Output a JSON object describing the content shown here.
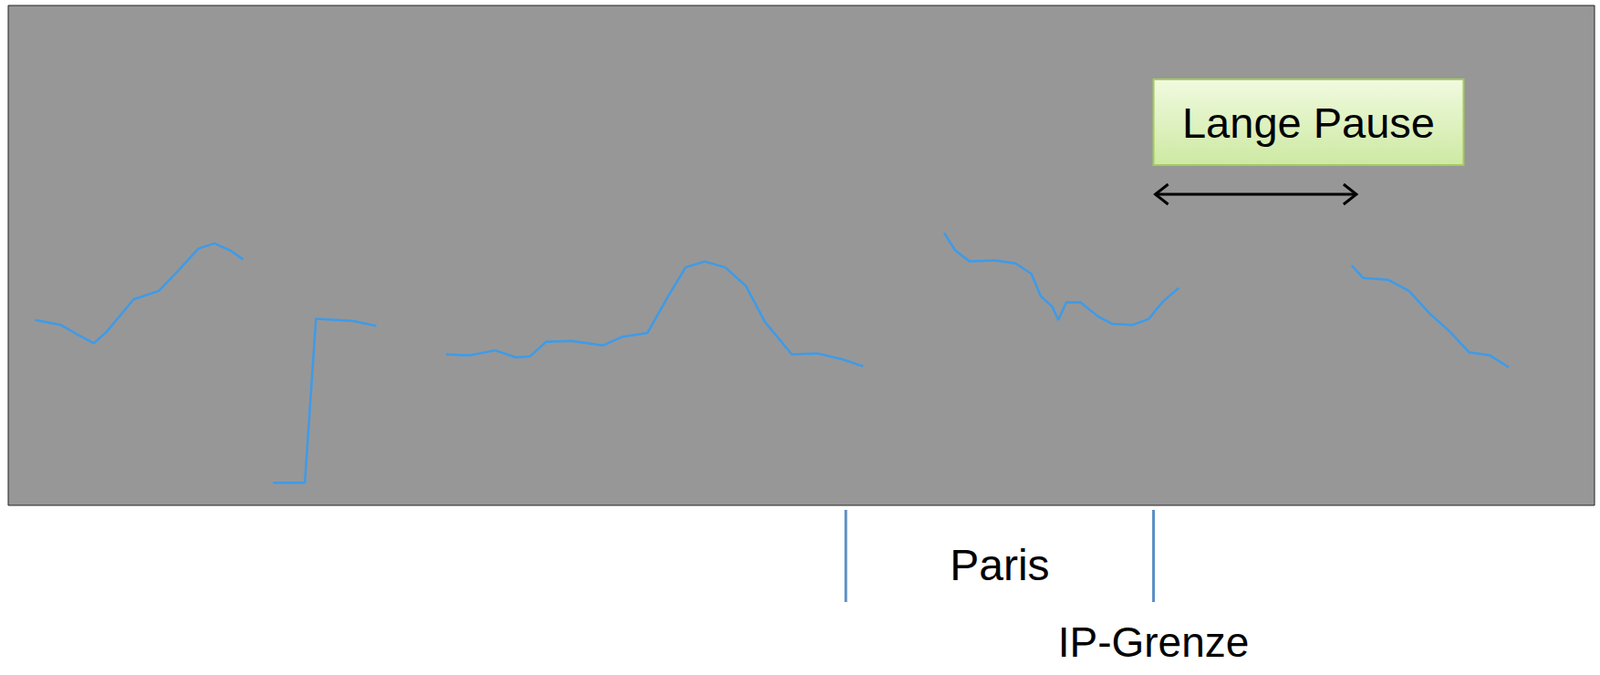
{
  "chart_data": {
    "type": "line",
    "color": "#3d9be9",
    "grid": false,
    "tick_labels": false,
    "xlim": [
      0,
      100
    ],
    "ylim": [
      0,
      100
    ],
    "x": [
      1.7,
      3.3,
      4.3,
      5.4,
      6.2,
      7.9,
      9.5,
      10.7,
      12.0,
      13.0,
      14.0,
      14.8,
      15.8,
      16.7,
      18.7,
      19.4,
      21.7,
      23.2,
      25.4,
      27.6,
      29.1,
      30.7,
      32.0,
      32.9,
      33.9,
      35.5,
      37.5,
      38.7,
      40.3,
      41.6,
      42.7,
      43.9,
      45.2,
      46.5,
      47.7,
      49.4,
      51.0,
      52.6,
      53.9,
      56.5,
      59.0,
      59.7,
      60.6,
      62.2,
      63.5,
      64.5,
      65.1,
      65.8,
      66.2,
      66.7,
      67.6,
      68.7,
      69.6,
      70.9,
      71.9,
      72.8,
      73.8,
      79.0,
      84.7,
      85.4,
      87.0,
      88.3,
      89.6,
      90.9,
      92.1,
      93.4,
      94.6
    ],
    "values": [
      37.1,
      36.1,
      34.3,
      32.4,
      34.7,
      41.2,
      42.9,
      46.9,
      51.4,
      52.4,
      51.0,
      49.2,
      null,
      4.5,
      4.5,
      37.3,
      36.9,
      35.9,
      null,
      30.2,
      30.0,
      31.0,
      29.6,
      29.8,
      32.7,
      32.9,
      32.0,
      33.7,
      34.5,
      41.8,
      47.6,
      48.8,
      47.6,
      43.9,
      36.7,
      30.2,
      30.4,
      29.2,
      27.8,
      null,
      54.5,
      51.0,
      48.8,
      49.0,
      48.4,
      46.3,
      41.8,
      39.8,
      37.1,
      40.6,
      40.6,
      37.8,
      36.3,
      36.1,
      37.3,
      40.8,
      43.5,
      null,
      48.0,
      45.5,
      45.1,
      42.9,
      38.4,
      34.7,
      30.6,
      30.0,
      27.6
    ],
    "segments": [
      {
        "label": "Paris",
        "start": 52.8,
        "end": 72.2
      }
    ],
    "ip_boundary": {
      "label": "IP-Grenze",
      "x": 72.2
    },
    "pause": {
      "label": "Lange Pause",
      "start": 72.2,
      "end": 85.1
    }
  }
}
